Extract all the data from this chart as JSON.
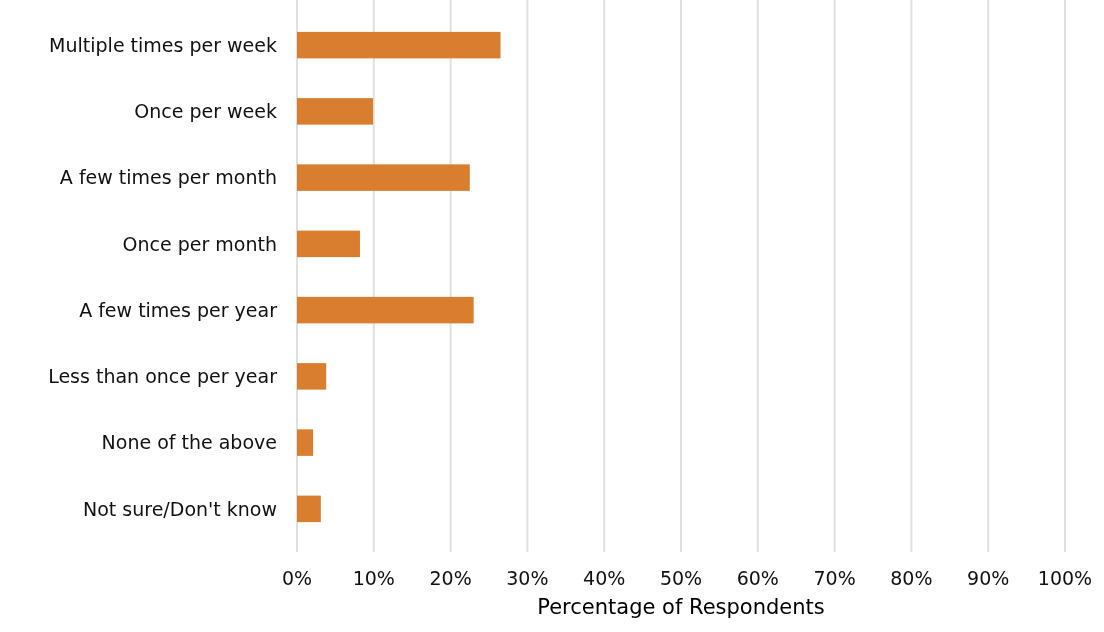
{
  "chart_data": {
    "type": "bar",
    "orientation": "horizontal",
    "xlabel": "Percentage of Respondents",
    "categories": [
      "Multiple times per week",
      "Once per week",
      "A few times per month",
      "Once per month",
      "A few times per year",
      "Less than once per year",
      "None of the above",
      "Not sure/Don't know"
    ],
    "values": [
      26.5,
      9.9,
      22.5,
      8.2,
      23.0,
      3.8,
      2.1,
      3.1
    ],
    "color": "#d97e2f",
    "xlim": [
      0,
      100
    ],
    "xticks": [
      {
        "value": 0,
        "label": "0%"
      },
      {
        "value": 10,
        "label": "10%"
      },
      {
        "value": 20,
        "label": "20%"
      },
      {
        "value": 30,
        "label": "30%"
      },
      {
        "value": 40,
        "label": "40%"
      },
      {
        "value": 50,
        "label": "50%"
      },
      {
        "value": 60,
        "label": "60%"
      },
      {
        "value": 70,
        "label": "70%"
      },
      {
        "value": 80,
        "label": "80%"
      },
      {
        "value": 90,
        "label": "90%"
      },
      {
        "value": 100,
        "label": "100%"
      }
    ],
    "grid": "x"
  }
}
